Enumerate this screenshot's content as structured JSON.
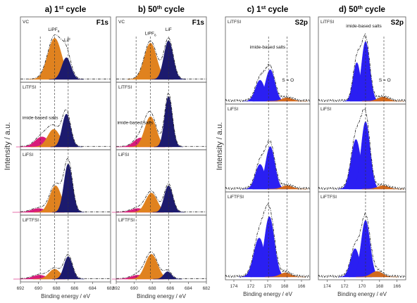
{
  "colors": {
    "lipf6": "#e0821f",
    "lif": "#1c1a6e",
    "imide": "#d81b7a",
    "s2p_main": "#2a1ff2",
    "s2p_so": "#d2691e",
    "frame": "#555555",
    "dashed": "#333333"
  },
  "y_axis_label": "Intensity / a.u.",
  "chart_data": [
    {
      "type": "area",
      "title": "a) 1st cycle",
      "title_parts": {
        "prefix": "a) 1",
        "sup": "st",
        "suffix": " cycle"
      },
      "element": "F1s",
      "xlabel": "Binding energy / eV",
      "xlim": [
        692,
        682
      ],
      "xticks": [
        692,
        690,
        688,
        686,
        684,
        682
      ],
      "panels": [
        {
          "name": "VC",
          "peaks": [
            {
              "series": "LiPF6",
              "center": 688.2,
              "height": 0.85,
              "fwhm": 1.8
            },
            {
              "series": "LiF",
              "center": 686.9,
              "height": 0.45,
              "fwhm": 1.2
            }
          ],
          "labels": [
            {
              "text": "LiPF",
              "sub": "6",
              "x": 688.3,
              "y": 1.0
            },
            {
              "text": "LiF",
              "x": 686.8,
              "y": 0.78
            }
          ]
        },
        {
          "name": "LiTFSI",
          "peaks": [
            {
              "series": "imide",
              "center": 689.6,
              "height": 0.2,
              "fwhm": 1.8
            },
            {
              "series": "LiPF6",
              "center": 688.3,
              "height": 0.35,
              "fwhm": 1.6
            },
            {
              "series": "LiF",
              "center": 686.9,
              "height": 0.65,
              "fwhm": 1.1
            }
          ],
          "labels": [
            {
              "text": "imide-based salts",
              "x": 689.8,
              "y": 0.55
            }
          ]
        },
        {
          "name": "LiFSI",
          "peaks": [
            {
              "series": "imide",
              "center": 690.0,
              "height": 0.08,
              "fwhm": 1.8
            },
            {
              "series": "LiPF6",
              "center": 688.1,
              "height": 0.55,
              "fwhm": 1.5
            },
            {
              "series": "LiF",
              "center": 686.7,
              "height": 1.0,
              "fwhm": 1.1
            }
          ],
          "labels": []
        },
        {
          "name": "LiFTFSI",
          "peaks": [
            {
              "series": "imide",
              "center": 689.9,
              "height": 0.08,
              "fwhm": 1.8
            },
            {
              "series": "LiPF6",
              "center": 688.2,
              "height": 0.2,
              "fwhm": 1.5
            },
            {
              "series": "LiF",
              "center": 686.7,
              "height": 0.45,
              "fwhm": 1.1
            }
          ],
          "labels": []
        }
      ],
      "dashed_lines": [
        689.8,
        688.2,
        686.7
      ]
    },
    {
      "type": "area",
      "title": "b) 50th cycle",
      "title_parts": {
        "prefix": "b) 50",
        "sup": "th",
        "suffix": " cycle"
      },
      "element": "F1s",
      "xlabel": "Binding energy / eV",
      "xlim": [
        692,
        682
      ],
      "xticks": [
        692,
        690,
        688,
        686,
        684,
        682
      ],
      "panels": [
        {
          "name": "VC",
          "peaks": [
            {
              "series": "LiPF6",
              "center": 688.2,
              "height": 0.75,
              "fwhm": 1.6
            },
            {
              "series": "LiF",
              "center": 686.2,
              "height": 0.8,
              "fwhm": 1.2
            }
          ],
          "labels": [
            {
              "text": "LiPF",
              "sub": "6",
              "x": 688.2,
              "y": 0.92
            },
            {
              "text": "LiF",
              "x": 686.2,
              "y": 1.0
            }
          ]
        },
        {
          "name": "LiTFSI",
          "peaks": [
            {
              "series": "imide",
              "center": 689.3,
              "height": 0.18,
              "fwhm": 1.7
            },
            {
              "series": "LiPF6",
              "center": 688.2,
              "height": 0.6,
              "fwhm": 1.5
            },
            {
              "series": "LiF",
              "center": 686.2,
              "height": 1.0,
              "fwhm": 1.0
            }
          ],
          "labels": [
            {
              "text": "imide-based salts",
              "x": 689.9,
              "y": 0.45
            }
          ]
        },
        {
          "name": "LiFSI",
          "peaks": [
            {
              "series": "imide",
              "center": 689.6,
              "height": 0.08,
              "fwhm": 1.8
            },
            {
              "series": "LiPF6",
              "center": 688.1,
              "height": 0.4,
              "fwhm": 1.5
            },
            {
              "series": "LiF",
              "center": 686.2,
              "height": 0.55,
              "fwhm": 1.1
            }
          ],
          "labels": []
        },
        {
          "name": "LiFTFSI",
          "peaks": [
            {
              "series": "imide",
              "center": 689.6,
              "height": 0.08,
              "fwhm": 1.8
            },
            {
              "series": "LiPF6",
              "center": 688.1,
              "height": 0.5,
              "fwhm": 1.6
            },
            {
              "series": "LiF",
              "center": 686.3,
              "height": 0.15,
              "fwhm": 1.0
            }
          ],
          "labels": []
        }
      ],
      "dashed_lines": [
        689.8,
        688.2,
        686.2
      ]
    },
    {
      "type": "area",
      "title": "c) 1st cycle",
      "title_parts": {
        "prefix": "c) 1",
        "sup": "st",
        "suffix": " cycle"
      },
      "element": "S2p",
      "xlabel": "Binding energy / eV",
      "xlim": [
        175,
        165
      ],
      "xticks": [
        174,
        172,
        170,
        168,
        166
      ],
      "panels": [
        {
          "name": "LiTFSI",
          "peaks": [
            {
              "series": "imide",
              "center": 170.9,
              "height": 0.3,
              "fwhm": 1.3
            },
            {
              "series": "imide",
              "center": 169.7,
              "height": 0.45,
              "fwhm": 1.3
            },
            {
              "series": "SO",
              "center": 167.7,
              "height": 0.05,
              "fwhm": 1.5
            }
          ],
          "labels": [
            {
              "text": "imide-based salts",
              "x": 170.0,
              "y": 0.75
            },
            {
              "text": "S = O",
              "x": 167.6,
              "y": 0.28
            }
          ]
        },
        {
          "name": "LiFSI",
          "peaks": [
            {
              "series": "imide",
              "center": 170.9,
              "height": 0.35,
              "fwhm": 1.3
            },
            {
              "series": "imide",
              "center": 169.7,
              "height": 0.6,
              "fwhm": 1.3
            },
            {
              "series": "SO",
              "center": 167.7,
              "height": 0.05,
              "fwhm": 1.5
            }
          ],
          "labels": []
        },
        {
          "name": "LiFTFSI",
          "peaks": [
            {
              "series": "imide",
              "center": 171.0,
              "height": 0.55,
              "fwhm": 1.5
            },
            {
              "series": "imide",
              "center": 169.8,
              "height": 0.85,
              "fwhm": 1.4
            },
            {
              "series": "SO",
              "center": 167.9,
              "height": 0.06,
              "fwhm": 1.5
            }
          ],
          "labels": []
        }
      ],
      "dashed_lines": [
        169.9,
        167.7
      ]
    },
    {
      "type": "area",
      "title": "d) 50th cycle",
      "title_parts": {
        "prefix": "d) 50",
        "sup": "th",
        "suffix": " cycle"
      },
      "element": "S2p",
      "xlabel": "Binding energy / eV",
      "xlim": [
        175,
        165
      ],
      "xticks": [
        174,
        172,
        170,
        168,
        166
      ],
      "panels": [
        {
          "name": "LiTFSI",
          "peaks": [
            {
              "series": "imide",
              "center": 170.6,
              "height": 0.55,
              "fwhm": 1.0
            },
            {
              "series": "imide",
              "center": 169.6,
              "height": 0.85,
              "fwhm": 1.1
            },
            {
              "series": "SO",
              "center": 167.6,
              "height": 0.06,
              "fwhm": 1.5
            }
          ],
          "labels": [
            {
              "text": "imide-based salts",
              "x": 169.8,
              "y": 1.05
            },
            {
              "text": "S = O",
              "x": 167.4,
              "y": 0.28
            }
          ]
        },
        {
          "name": "LiFSI",
          "peaks": [
            {
              "series": "imide",
              "center": 170.7,
              "height": 0.7,
              "fwhm": 1.3
            },
            {
              "series": "imide",
              "center": 169.6,
              "height": 0.95,
              "fwhm": 1.2
            },
            {
              "series": "SO",
              "center": 167.6,
              "height": 0.05,
              "fwhm": 1.5
            }
          ],
          "labels": []
        },
        {
          "name": "LiFTFSI",
          "peaks": [
            {
              "series": "imide",
              "center": 170.8,
              "height": 0.4,
              "fwhm": 1.2
            },
            {
              "series": "imide",
              "center": 169.6,
              "height": 0.8,
              "fwhm": 1.2
            },
            {
              "series": "SO",
              "center": 168.3,
              "height": 0.08,
              "fwhm": 1.5
            }
          ],
          "labels": []
        }
      ],
      "dashed_lines": [
        169.6,
        167.5
      ]
    }
  ]
}
